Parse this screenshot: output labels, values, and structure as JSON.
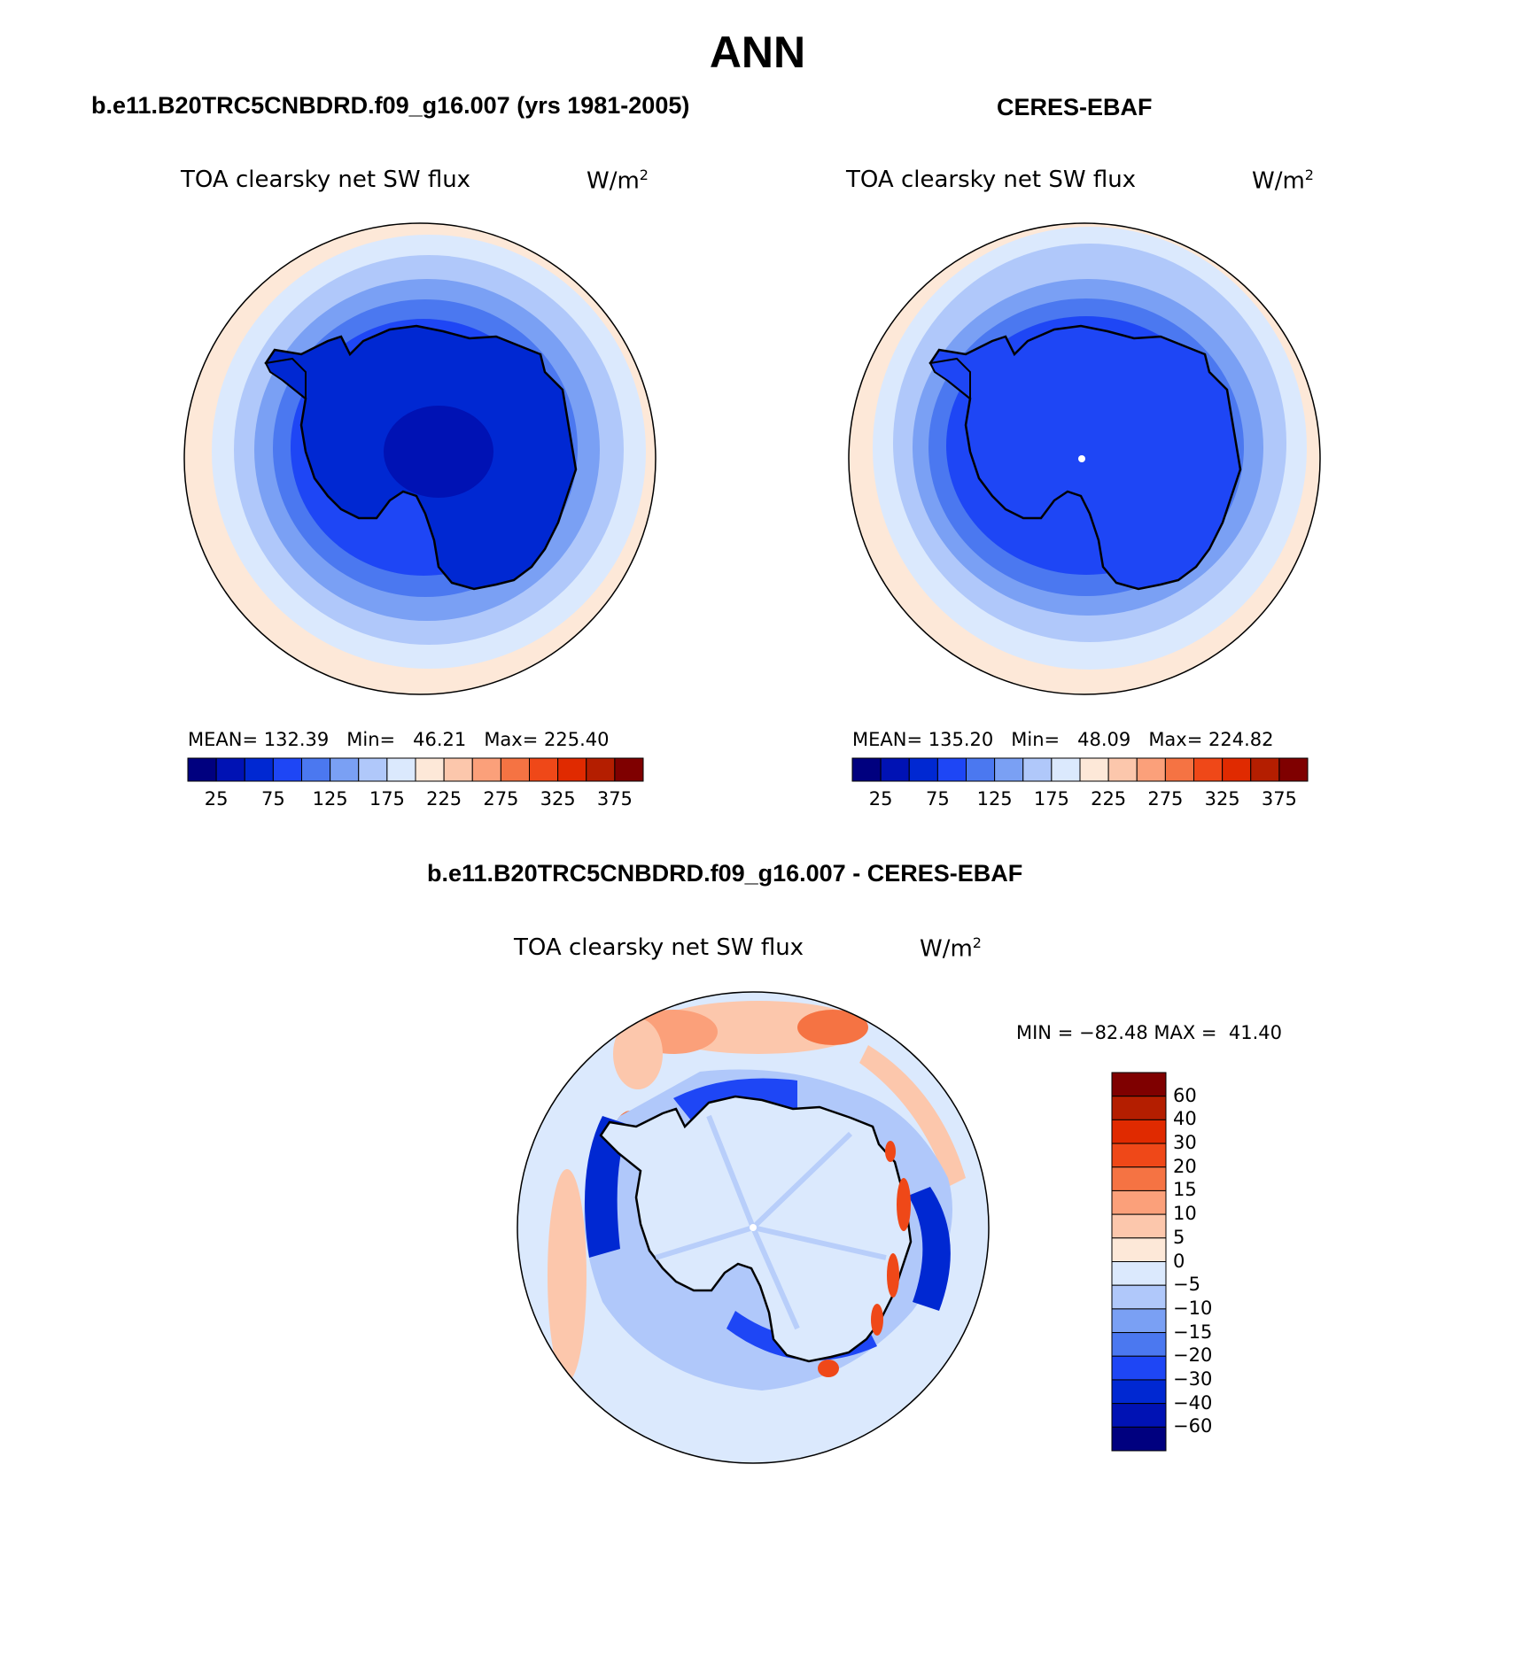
{
  "title": "ANN",
  "panels": [
    {
      "id": "model",
      "heading": "b.e11.B20TRC5CNBDRD.f09_g16.007 (yrs 1981-2005)",
      "variable": "TOA clearsky net SW flux",
      "units": "W/m",
      "units_sup": "2",
      "stats": {
        "mean_label": "MEAN=",
        "mean": "132.39",
        "min_label": "Min=",
        "min": "46.21",
        "max_label": "Max=",
        "max": "225.40"
      }
    },
    {
      "id": "obs",
      "heading": "CERES-EBAF",
      "variable": "TOA clearsky net SW flux",
      "units": "W/m",
      "units_sup": "2",
      "stats": {
        "mean_label": "MEAN=",
        "mean": "135.20",
        "min_label": "Min=",
        "min": "48.09",
        "max_label": "Max=",
        "max": "224.82"
      }
    },
    {
      "id": "diff",
      "heading": "b.e11.B20TRC5CNBDRD.f09_g16.007 - CERES-EBAF",
      "variable": "TOA clearsky net SW flux",
      "units": "W/m",
      "units_sup": "2",
      "minmax_text": "MIN = −82.48 MAX =  41.40"
    }
  ],
  "chart_data": [
    {
      "type": "heatmap",
      "projection": "south-polar-stereographic",
      "panel": "model",
      "colorbar": {
        "orientation": "horizontal",
        "levels": [
          25,
          50,
          75,
          100,
          125,
          150,
          175,
          200,
          225,
          250,
          275,
          300,
          325,
          350,
          375
        ],
        "tick_labels": [
          "25",
          "75",
          "125",
          "175",
          "225",
          "275",
          "325",
          "375"
        ],
        "colors": [
          "#00007f",
          "#0012b4",
          "#0028d2",
          "#1e46f5",
          "#4b78f0",
          "#7aa0f4",
          "#b0c8fa",
          "#dbe9fd",
          "#fde8d8",
          "#fcc7ac",
          "#fba07a",
          "#f57343",
          "#ef4818",
          "#e02a00",
          "#b41e00",
          "#7f0000"
        ]
      }
    },
    {
      "type": "heatmap",
      "projection": "south-polar-stereographic",
      "panel": "obs",
      "colorbar": {
        "orientation": "horizontal",
        "levels": [
          25,
          50,
          75,
          100,
          125,
          150,
          175,
          200,
          225,
          250,
          275,
          300,
          325,
          350,
          375
        ],
        "tick_labels": [
          "25",
          "75",
          "125",
          "175",
          "225",
          "275",
          "325",
          "375"
        ],
        "colors": [
          "#00007f",
          "#0012b4",
          "#0028d2",
          "#1e46f5",
          "#4b78f0",
          "#7aa0f4",
          "#b0c8fa",
          "#dbe9fd",
          "#fde8d8",
          "#fcc7ac",
          "#fba07a",
          "#f57343",
          "#ef4818",
          "#e02a00",
          "#b41e00",
          "#7f0000"
        ]
      }
    },
    {
      "type": "heatmap",
      "projection": "south-polar-stereographic",
      "panel": "diff",
      "colorbar": {
        "orientation": "vertical",
        "levels": [
          60,
          40,
          30,
          20,
          15,
          10,
          5,
          0,
          -5,
          -10,
          -15,
          -20,
          -30,
          -40,
          -60
        ],
        "tick_labels": [
          "60",
          "40",
          "30",
          "20",
          "15",
          "10",
          "5",
          "0",
          "−5",
          "−10",
          "−15",
          "−20",
          "−30",
          "−40",
          "−60"
        ],
        "colors": [
          "#7f0000",
          "#b41e00",
          "#e02a00",
          "#ef4818",
          "#f57343",
          "#fba07a",
          "#fcc7ac",
          "#fde8d8",
          "#dbe9fd",
          "#b0c8fa",
          "#7aa0f4",
          "#4b78f0",
          "#1e46f5",
          "#0028d2",
          "#0012b4",
          "#00007f"
        ]
      }
    }
  ]
}
